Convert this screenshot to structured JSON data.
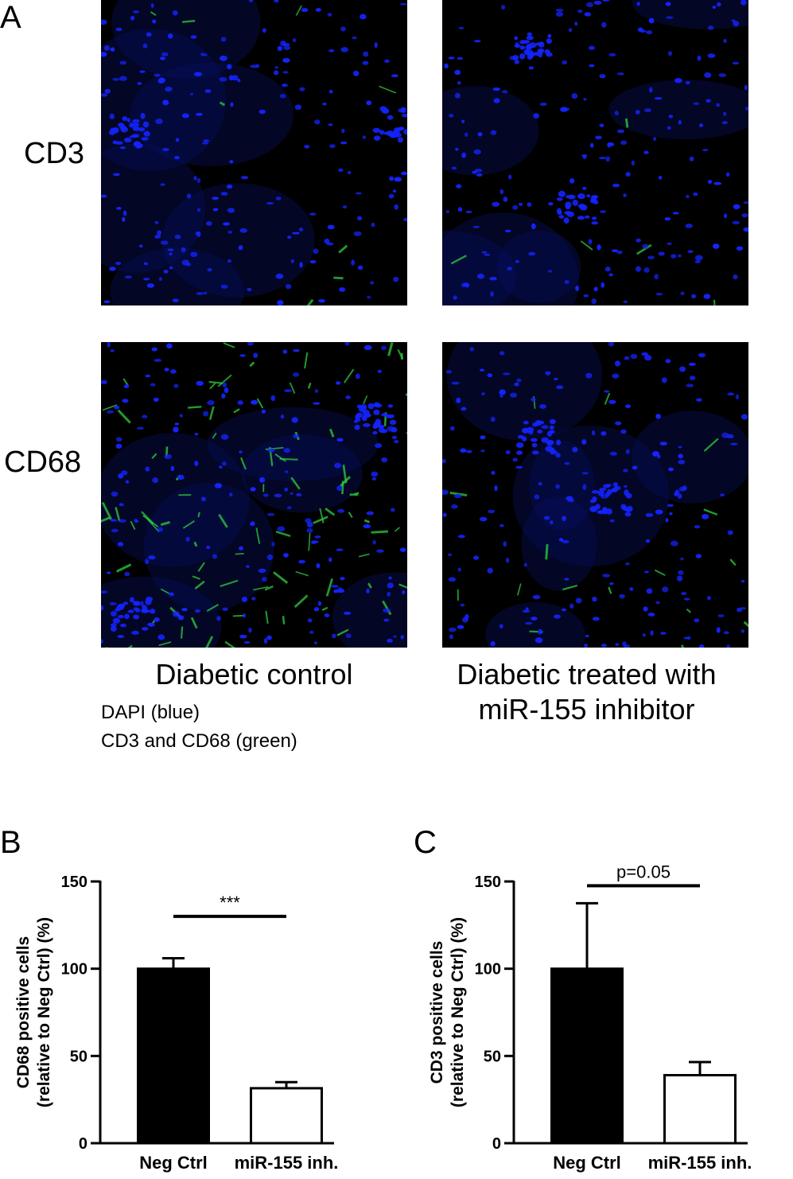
{
  "panel_a": {
    "letter": "A",
    "row_labels": [
      "CD3",
      "CD68"
    ],
    "column_labels": [
      "Diabetic control",
      "Diabetic treated with\nmiR-155 inhibitor"
    ],
    "legend_lines": [
      "DAPI (blue)",
      "CD3 and CD68 (green)"
    ],
    "colors": {
      "nuclei": "#1424ff",
      "marker": "#2ecc40",
      "background": "#000000"
    },
    "green_density": {
      "cd3_control": 0.05,
      "cd3_treated": 0.03,
      "cd68_control": 0.6,
      "cd68_treated": 0.1
    }
  },
  "chart_data": [
    {
      "letter": "B",
      "type": "bar",
      "categories": [
        "Neg Ctrl",
        "miR-155 inh."
      ],
      "values": [
        100,
        31.5
      ],
      "errors": [
        6,
        3.5
      ],
      "bar_colors": [
        "#000000",
        "#ffffff"
      ],
      "ylabel": "CD68 positive cells\n(relative to Neg Ctrl) (%)",
      "ylim": [
        0,
        150
      ],
      "yticks": [
        0,
        50,
        100,
        150
      ],
      "significance": {
        "label": "***",
        "between": [
          0,
          1
        ]
      }
    },
    {
      "letter": "C",
      "type": "bar",
      "categories": [
        "Neg Ctrl",
        "miR-155 inh."
      ],
      "values": [
        100,
        39
      ],
      "errors": [
        37.5,
        7.5
      ],
      "bar_colors": [
        "#000000",
        "#ffffff"
      ],
      "ylabel": "CD3 positive cells\n(relative to Neg Ctrl) (%)",
      "ylim": [
        0,
        150
      ],
      "yticks": [
        0,
        50,
        100,
        150
      ],
      "significance": {
        "label": "p=0.05",
        "between": [
          0,
          1
        ]
      }
    }
  ]
}
